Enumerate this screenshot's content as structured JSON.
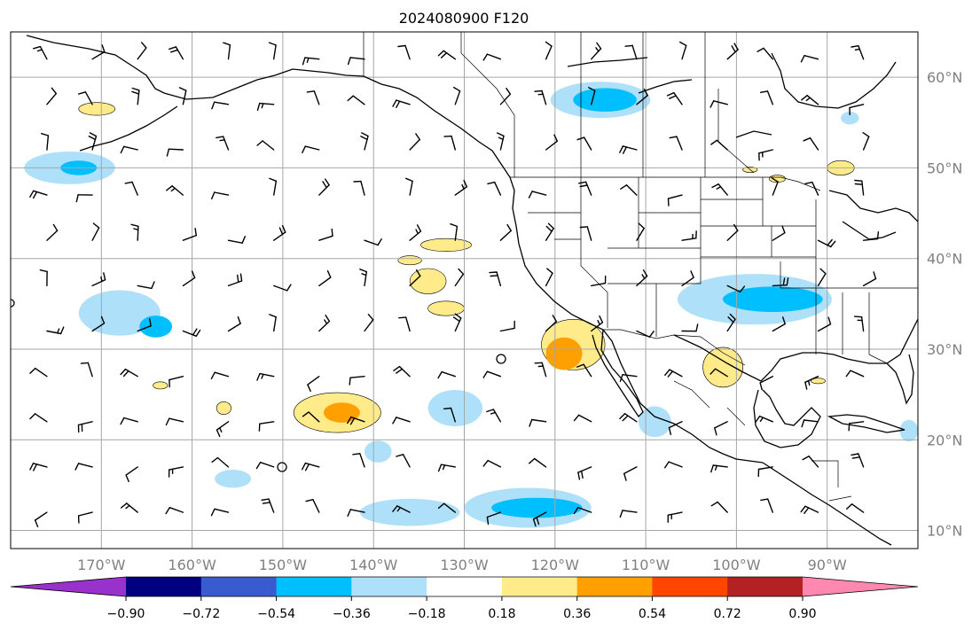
{
  "map": {
    "title": "2024080900 F120",
    "projection": "PlateCarree",
    "extent": {
      "lon": [
        -180,
        -80
      ],
      "lat": [
        8,
        65
      ]
    },
    "gridlines": true,
    "coastlines": true,
    "borders": true,
    "variable_barbs": true,
    "lon_ticks": [
      {
        "value": -170,
        "label": "170°W"
      },
      {
        "value": -160,
        "label": "160°W"
      },
      {
        "value": -150,
        "label": "150°W"
      },
      {
        "value": -140,
        "label": "140°W"
      },
      {
        "value": -130,
        "label": "130°W"
      },
      {
        "value": -120,
        "label": "120°W"
      },
      {
        "value": -110,
        "label": "110°W"
      },
      {
        "value": -100,
        "label": "100°W"
      },
      {
        "value": -90,
        "label": "90°W"
      }
    ],
    "lat_ticks": [
      {
        "value": 60,
        "label": "60°N"
      },
      {
        "value": 50,
        "label": "50°N"
      },
      {
        "value": 40,
        "label": "40°N"
      },
      {
        "value": 30,
        "label": "30°N"
      },
      {
        "value": 20,
        "label": "20°N"
      },
      {
        "value": 10,
        "label": "10°N"
      }
    ]
  },
  "colorbar": {
    "extend": "both",
    "levels": [
      "−0.90",
      "−0.72",
      "−0.54",
      "−0.36",
      "−0.18",
      "0.18",
      "0.36",
      "0.54",
      "0.72",
      "0.90"
    ],
    "colors": [
      "#9932cc",
      "#000080",
      "#3a5bd0",
      "#00bfff",
      "#aee0fa",
      "#ffffff",
      "#ffeb8a",
      "#ffa000",
      "#ff4500",
      "#b22222",
      "#ff88b0"
    ]
  },
  "anomalies": [
    {
      "lon": -115,
      "lat": 57.5,
      "rx": 5.5,
      "ry": 2.0,
      "level": -0.36
    },
    {
      "lon": -114.5,
      "lat": 57.5,
      "rx": 3.5,
      "ry": 1.3,
      "level": -0.54
    },
    {
      "lon": -173.5,
      "lat": 50.0,
      "rx": 5.0,
      "ry": 1.8,
      "level": -0.36
    },
    {
      "lon": -172.5,
      "lat": 50.0,
      "rx": 2.0,
      "ry": 0.8,
      "level": -0.54
    },
    {
      "lon": -168,
      "lat": 34.0,
      "rx": 4.5,
      "ry": 2.5,
      "level": -0.36
    },
    {
      "lon": -164,
      "lat": 32.5,
      "rx": 1.8,
      "ry": 1.2,
      "level": -0.54
    },
    {
      "lon": -98,
      "lat": 35.5,
      "rx": 8.5,
      "ry": 2.8,
      "level": -0.36
    },
    {
      "lon": -96,
      "lat": 35.5,
      "rx": 5.5,
      "ry": 1.4,
      "level": -0.54
    },
    {
      "lon": -123,
      "lat": 12.5,
      "rx": 7.0,
      "ry": 2.2,
      "level": -0.36
    },
    {
      "lon": -122,
      "lat": 12.5,
      "rx": 5.0,
      "ry": 1.1,
      "level": -0.54
    },
    {
      "lon": -136,
      "lat": 12.0,
      "rx": 5.5,
      "ry": 1.5,
      "level": -0.36
    },
    {
      "lon": -131,
      "lat": 23.5,
      "rx": 3.0,
      "ry": 2.0,
      "level": -0.36
    },
    {
      "lon": -139.5,
      "lat": 18.7,
      "rx": 1.5,
      "ry": 1.2,
      "level": -0.36
    },
    {
      "lon": -155.5,
      "lat": 15.7,
      "rx": 2.0,
      "ry": 1.0,
      "level": -0.36
    },
    {
      "lon": -109,
      "lat": 22.0,
      "rx": 1.8,
      "ry": 1.7,
      "level": -0.36
    },
    {
      "lon": -87.5,
      "lat": 55.5,
      "rx": 1.0,
      "ry": 0.7,
      "level": -0.36
    },
    {
      "lon": -81,
      "lat": 21.0,
      "rx": 1.0,
      "ry": 1.2,
      "level": -0.36
    },
    {
      "lon": -118,
      "lat": 30.5,
      "rx": 3.5,
      "ry": 2.8,
      "level": 0.18
    },
    {
      "lon": -119,
      "lat": 29.5,
      "rx": 2.0,
      "ry": 1.8,
      "level": 0.36
    },
    {
      "lon": -144,
      "lat": 23.0,
      "rx": 4.8,
      "ry": 2.2,
      "level": 0.18
    },
    {
      "lon": -143.5,
      "lat": 23.0,
      "rx": 2.0,
      "ry": 1.1,
      "level": 0.36
    },
    {
      "lon": -101.5,
      "lat": 28.0,
      "rx": 2.2,
      "ry": 2.2,
      "level": 0.18
    },
    {
      "lon": -132,
      "lat": 41.5,
      "rx": 2.8,
      "ry": 0.7,
      "level": 0.18
    },
    {
      "lon": -134,
      "lat": 37.5,
      "rx": 2.0,
      "ry": 1.4,
      "level": 0.18
    },
    {
      "lon": -132,
      "lat": 34.5,
      "rx": 2.0,
      "ry": 0.8,
      "level": 0.18
    },
    {
      "lon": -170.5,
      "lat": 56.5,
      "rx": 2.0,
      "ry": 0.7,
      "level": 0.18
    },
    {
      "lon": -88.5,
      "lat": 50.0,
      "rx": 1.5,
      "ry": 0.8,
      "level": 0.18
    },
    {
      "lon": -136,
      "lat": 39.8,
      "rx": 1.3,
      "ry": 0.5,
      "level": 0.18
    },
    {
      "lon": -156.5,
      "lat": 23.5,
      "rx": 0.8,
      "ry": 0.7,
      "level": 0.18
    },
    {
      "lon": -163.5,
      "lat": 26.0,
      "rx": 0.8,
      "ry": 0.4,
      "level": 0.18
    },
    {
      "lon": -91,
      "lat": 26.5,
      "rx": 0.8,
      "ry": 0.3,
      "level": 0.18
    },
    {
      "lon": -95.5,
      "lat": 48.8,
      "rx": 0.9,
      "ry": 0.4,
      "level": 0.18
    },
    {
      "lon": -98.5,
      "lat": 49.8,
      "rx": 0.8,
      "ry": 0.3,
      "level": 0.18
    }
  ]
}
